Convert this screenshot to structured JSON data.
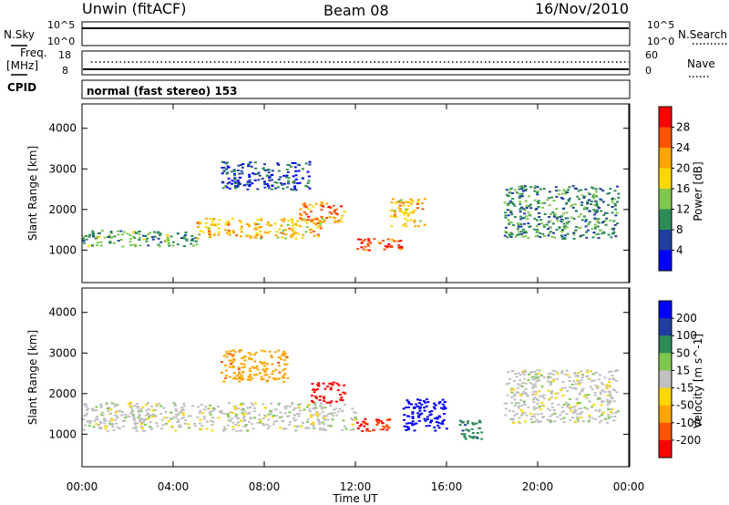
{
  "header": {
    "station": "Unwin (fitACF)",
    "beam": "Beam 08",
    "date": "16/Nov/2010"
  },
  "top_panels": {
    "nsky_label": "N.Sky",
    "nsky_ticks": [
      "10^5",
      "10^0"
    ],
    "nsearch_label": "N.Search",
    "nsearch_ticks": [
      "10^5",
      "10^0"
    ],
    "freq_label": "Freq.",
    "freq_unit": "[MHz]",
    "freq_ticks": [
      "18",
      "8"
    ],
    "nave_label": "Nave",
    "nave_ticks": [
      "60",
      "0"
    ],
    "cpid_label": "CPID",
    "cpid_value": "normal (fast stereo) 153"
  },
  "colors": {
    "power": [
      "#0000ff",
      "#1f3f9f",
      "#2e8b57",
      "#7fc84f",
      "#ffd700",
      "#ffa500",
      "#ff5500",
      "#ff0000"
    ],
    "velocity": [
      "#0000ff",
      "#1f3f9f",
      "#2e8b57",
      "#7fc84f",
      "#c0c0c0",
      "#ffd700",
      "#ffa500",
      "#ff5500",
      "#ff0000"
    ],
    "ground": "#c8c8c8"
  },
  "chart_data": [
    {
      "type": "heatmap",
      "ylabel": "Slant Range [km]",
      "ylim": [
        200,
        4600
      ],
      "y_ticks": [
        "4000",
        "3000",
        "2000",
        "1000"
      ],
      "xlim": [
        0,
        24
      ],
      "x_ticks": [
        "00:00",
        "04:00",
        "08:00",
        "12:00",
        "16:00",
        "20:00",
        "00:00"
      ],
      "colorbar": {
        "label": "Power [dB]",
        "ticks": [
          "28",
          "24",
          "20",
          "16",
          "12",
          "8",
          "4"
        ],
        "range": [
          0,
          30
        ]
      },
      "features": [
        {
          "t": [
            0.0,
            5.0
          ],
          "r": [
            1100,
            1500
          ],
          "value": 12
        },
        {
          "t": [
            5.0,
            10.5
          ],
          "r": [
            1300,
            1800
          ],
          "value": 20
        },
        {
          "t": [
            9.5,
            11.5
          ],
          "r": [
            1700,
            2200
          ],
          "value": 24
        },
        {
          "t": [
            12.0,
            14.0
          ],
          "r": [
            1000,
            1300
          ],
          "value": 28
        },
        {
          "t": [
            13.5,
            15.0
          ],
          "r": [
            1600,
            2300
          ],
          "value": 20
        },
        {
          "t": [
            18.5,
            23.5
          ],
          "r": [
            1300,
            2600
          ],
          "value": 10
        },
        {
          "t": [
            6.0,
            10.0
          ],
          "r": [
            2500,
            3200
          ],
          "value": 6
        }
      ]
    },
    {
      "type": "heatmap",
      "ylabel": "Slant Range [km]",
      "ylim": [
        200,
        4600
      ],
      "y_ticks": [
        "4000",
        "3000",
        "2000",
        "1000"
      ],
      "xlim": [
        0,
        24
      ],
      "x_ticks": [
        "00:00",
        "04:00",
        "08:00",
        "12:00",
        "16:00",
        "20:00",
        "00:00"
      ],
      "xlabel": "Time UT",
      "colorbar": {
        "label": "Velocity [m s^-1]",
        "ticks": [
          "200",
          "100",
          "50",
          "15",
          "-15",
          "-50",
          "-100",
          "-200"
        ],
        "range": [
          -250,
          250
        ]
      },
      "features": [
        {
          "t": [
            0.0,
            12.0
          ],
          "r": [
            1100,
            1800
          ],
          "value": 0
        },
        {
          "t": [
            10.0,
            11.5
          ],
          "r": [
            1800,
            2300
          ],
          "value": -200
        },
        {
          "t": [
            12.0,
            13.5
          ],
          "r": [
            1100,
            1400
          ],
          "value": -150
        },
        {
          "t": [
            14.0,
            16.0
          ],
          "r": [
            1100,
            1900
          ],
          "value": 200
        },
        {
          "t": [
            16.5,
            17.5
          ],
          "r": [
            900,
            1400
          ],
          "value": 60
        },
        {
          "t": [
            18.5,
            23.5
          ],
          "r": [
            1300,
            2600
          ],
          "value": 0
        },
        {
          "t": [
            6.0,
            9.0
          ],
          "r": [
            2300,
            3100
          ],
          "value": -60
        }
      ]
    }
  ]
}
